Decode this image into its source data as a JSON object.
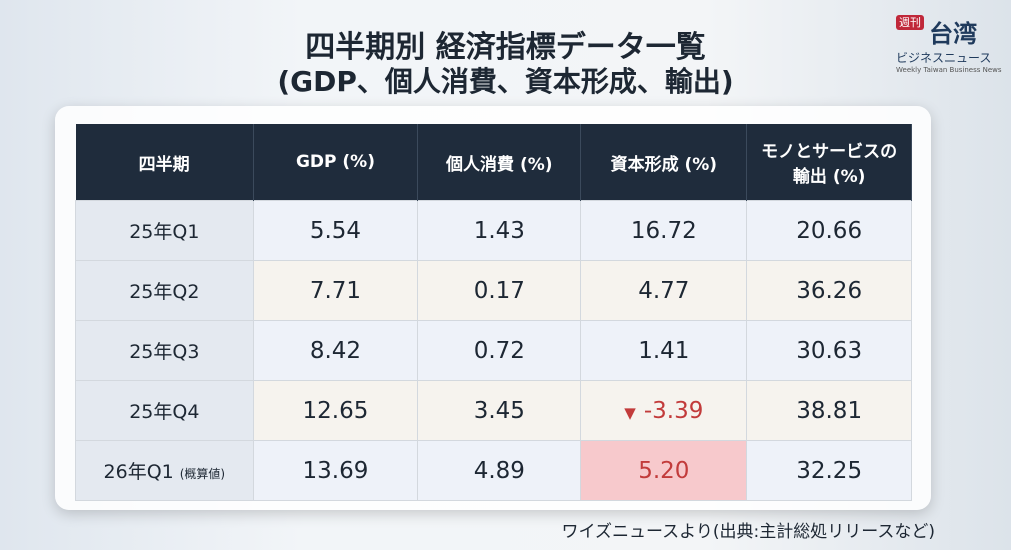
{
  "header": {
    "title": "四半期別 経済指標データ一覧",
    "subtitle": "(GDP、個人消費、資本形成、輸出)"
  },
  "logo": {
    "badge": "週刊",
    "name": "台湾",
    "kana": "ビジネスニュース",
    "english": "Weekly Taiwan Business News"
  },
  "table": {
    "columns": [
      "四半期",
      "GDP (%)",
      "個人消費 (%)",
      "資本形成 (%)",
      "モノとサービスの輸出 (%)"
    ],
    "rows": [
      {
        "label": "25年Q1",
        "cells": [
          "5.54",
          "1.43",
          "16.72",
          "20.66"
        ]
      },
      {
        "label": "25年Q2",
        "cells": [
          "7.71",
          "0.17",
          "4.77",
          "36.26"
        ]
      },
      {
        "label": "25年Q3",
        "cells": [
          "8.42",
          "0.72",
          "1.41",
          "30.63"
        ]
      },
      {
        "label": "25年Q4",
        "cells": [
          "12.65",
          "3.45",
          "-3.39",
          "38.81"
        ]
      },
      {
        "label": "26年Q1",
        "note": "(概算値)",
        "cells": [
          "13.69",
          "4.89",
          "5.20",
          "32.25"
        ]
      }
    ]
  },
  "source": "ワイズニュースより(出典:主計総処リリースなど)"
}
